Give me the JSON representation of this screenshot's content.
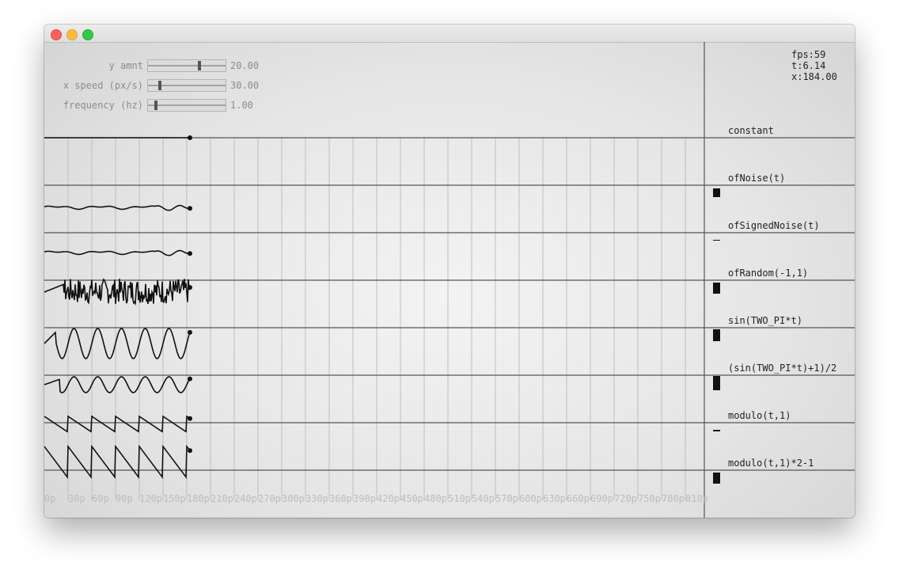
{
  "window": {
    "title": ""
  },
  "controls": [
    {
      "label": "y amnt",
      "value": "20.00",
      "fraction": 0.67
    },
    {
      "label": "x speed (px/s)",
      "value": "30.00",
      "fraction": 0.14
    },
    {
      "label": "frequency (hz)",
      "value": "1.00",
      "fraction": 0.09
    }
  ],
  "stats": {
    "fps": "fps:59",
    "t": "t:6.14",
    "x": "x:184.00"
  },
  "rows": [
    {
      "label": "constant",
      "bar_value": 0.0
    },
    {
      "label": "ofNoise(t)",
      "bar_value": 0.55
    },
    {
      "label": "ofSignedNoise(t)",
      "bar_value": 0.05
    },
    {
      "label": "ofRandom(-1,1)",
      "bar_value": 0.7
    },
    {
      "label": "sin(TWO_PI*t)",
      "bar_value": 0.75
    },
    {
      "label": "(sin(TWO_PI*t)+1)/2",
      "bar_value": 0.9
    },
    {
      "label": "modulo(t,1)",
      "bar_value": 0.1
    },
    {
      "label": "modulo(t,1)*2-1",
      "bar_value": 0.7
    }
  ],
  "axis_labels": [
    "0p",
    "30p",
    "60p",
    "90p",
    "120p",
    "150p",
    "180p",
    "210p",
    "240p",
    "270p",
    "300p",
    "330p",
    "360p",
    "390p",
    "420p",
    "450p",
    "480p",
    "510p",
    "540p",
    "570p",
    "600p",
    "630p",
    "660p",
    "690p",
    "720p",
    "750p",
    "780p",
    "810p"
  ],
  "colors": {
    "line": "#111111",
    "grid": "#bebebe",
    "axis_text": "#bdbdbd"
  }
}
